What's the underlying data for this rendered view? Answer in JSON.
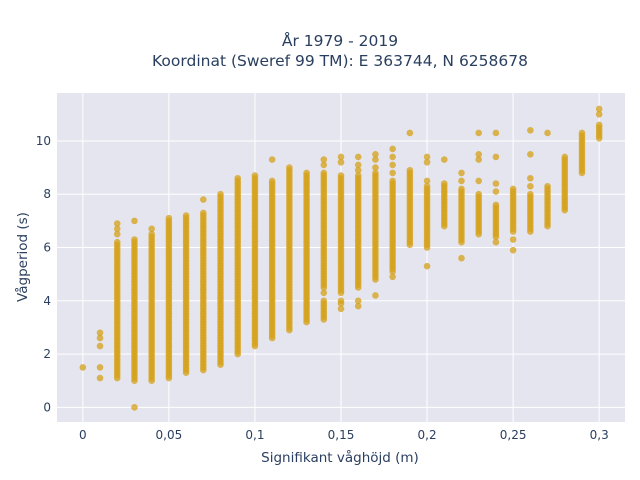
{
  "chart_data": {
    "type": "scatter",
    "title_line1": "År 1979 - 2019",
    "title_line2": "Koordinat (Sweref 99 TM): E 363744, N 6258678",
    "xlabel": "Signifikant våghöjd (m)",
    "ylabel": "Vågperiod (s)",
    "xlim": [
      -0.015,
      0.315
    ],
    "ylim": [
      -0.55,
      11.8
    ],
    "x_ticks": [
      0,
      0.05,
      0.1,
      0.15,
      0.2,
      0.25,
      0.3
    ],
    "x_tick_labels": [
      "0",
      "0,05",
      "0,1",
      "0,15",
      "0,2",
      "0,25",
      "0,3"
    ],
    "y_ticks": [
      0,
      2,
      4,
      6,
      8,
      10
    ],
    "y_tick_labels": [
      "0",
      "2",
      "4",
      "6",
      "8",
      "10"
    ],
    "grid": true,
    "marker_color": "#D4A017",
    "plot_background": "#E5E5EF",
    "gridline_color": "#FFFFFF",
    "series": [
      {
        "points": [
          [
            0.0,
            1.5
          ],
          [
            0.01,
            1.1
          ],
          [
            0.01,
            1.5
          ],
          [
            0.01,
            2.3
          ],
          [
            0.01,
            2.6
          ],
          [
            0.01,
            2.8
          ],
          [
            0.03,
            0.0
          ]
        ],
        "columns": [
          {
            "x": 0.02,
            "segments": [
              [
                1.1,
                6.2
              ]
            ],
            "extra": [
              6.5,
              6.7,
              6.9
            ]
          },
          {
            "x": 0.03,
            "segments": [
              [
                1.0,
                6.3
              ]
            ],
            "extra": [
              7.0
            ]
          },
          {
            "x": 0.04,
            "segments": [
              [
                1.0,
                6.5
              ]
            ],
            "extra": [
              6.7
            ]
          },
          {
            "x": 0.05,
            "segments": [
              [
                1.1,
                7.0
              ]
            ],
            "extra": [
              7.1
            ]
          },
          {
            "x": 0.06,
            "segments": [
              [
                1.3,
                7.2
              ]
            ],
            "extra": []
          },
          {
            "x": 0.07,
            "segments": [
              [
                1.4,
                7.3
              ]
            ],
            "extra": [
              7.8
            ]
          },
          {
            "x": 0.08,
            "segments": [
              [
                1.6,
                8.0
              ]
            ],
            "extra": []
          },
          {
            "x": 0.09,
            "segments": [
              [
                2.0,
                8.6
              ]
            ],
            "extra": []
          },
          {
            "x": 0.1,
            "segments": [
              [
                2.3,
                8.7
              ]
            ],
            "extra": []
          },
          {
            "x": 0.11,
            "segments": [
              [
                2.6,
                8.5
              ]
            ],
            "extra": [
              9.3
            ]
          },
          {
            "x": 0.12,
            "segments": [
              [
                2.9,
                9.0
              ]
            ],
            "extra": []
          },
          {
            "x": 0.13,
            "segments": [
              [
                3.2,
                8.8
              ]
            ],
            "extra": []
          },
          {
            "x": 0.14,
            "segments": [
              [
                4.6,
                8.8
              ],
              [
                3.3,
                4.0
              ]
            ],
            "extra": [
              4.3,
              4.5,
              9.1,
              9.3
            ]
          },
          {
            "x": 0.15,
            "segments": [
              [
                4.3,
                8.7
              ]
            ],
            "extra": [
              3.7,
              3.9,
              4.0,
              9.2,
              9.4
            ]
          },
          {
            "x": 0.16,
            "segments": [
              [
                4.5,
                8.7
              ]
            ],
            "extra": [
              3.8,
              4.0,
              8.9,
              9.1,
              9.4
            ]
          },
          {
            "x": 0.17,
            "segments": [
              [
                4.8,
                8.8
              ]
            ],
            "extra": [
              4.2,
              9.0,
              9.3,
              9.5
            ]
          },
          {
            "x": 0.18,
            "segments": [
              [
                5.1,
                8.5
              ]
            ],
            "extra": [
              4.9,
              8.8,
              9.1,
              9.4,
              9.7
            ]
          },
          {
            "x": 0.19,
            "segments": [
              [
                6.1,
                8.9
              ]
            ],
            "extra": [
              10.3
            ]
          },
          {
            "x": 0.2,
            "segments": [
              [
                6.0,
                8.3
              ]
            ],
            "extra": [
              5.3,
              8.5,
              9.2,
              9.4
            ]
          },
          {
            "x": 0.21,
            "segments": [
              [
                6.8,
                8.4
              ]
            ],
            "extra": [
              9.3
            ]
          },
          {
            "x": 0.22,
            "segments": [
              [
                6.2,
                8.2
              ]
            ],
            "extra": [
              5.6,
              8.5,
              8.8
            ]
          },
          {
            "x": 0.23,
            "segments": [
              [
                6.5,
                8.0
              ]
            ],
            "extra": [
              8.5,
              9.3,
              9.5,
              10.3
            ]
          },
          {
            "x": 0.24,
            "segments": [
              [
                6.4,
                7.6
              ]
            ],
            "extra": [
              6.2,
              8.1,
              8.4,
              9.4,
              10.3
            ]
          },
          {
            "x": 0.25,
            "segments": [
              [
                6.6,
                8.2
              ]
            ],
            "extra": [
              5.9,
              6.3
            ]
          },
          {
            "x": 0.26,
            "segments": [
              [
                6.6,
                8.0
              ]
            ],
            "extra": [
              8.3,
              8.6,
              9.5,
              10.4
            ]
          },
          {
            "x": 0.27,
            "segments": [
              [
                6.8,
                8.3
              ]
            ],
            "extra": [
              10.3
            ]
          },
          {
            "x": 0.28,
            "segments": [
              [
                7.4,
                9.4
              ]
            ],
            "extra": []
          },
          {
            "x": 0.29,
            "segments": [
              [
                8.8,
                10.3
              ]
            ],
            "extra": []
          },
          {
            "x": 0.3,
            "segments": [
              [
                10.1,
                10.6
              ]
            ],
            "extra": [
              11.0,
              11.2
            ]
          }
        ]
      }
    ]
  }
}
